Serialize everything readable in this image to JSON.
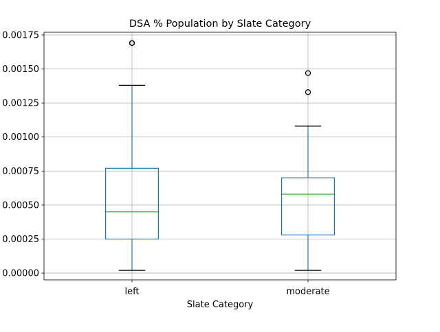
{
  "chart_data": {
    "type": "box",
    "title": "DSA % Population by Slate Category",
    "xlabel": "Slate Category",
    "ylabel": "",
    "categories": [
      "left",
      "moderate"
    ],
    "ylim": [
      -5e-05,
      0.00177
    ],
    "yticks": [
      0.0,
      0.00025,
      0.0005,
      0.00075,
      0.001,
      0.00125,
      0.0015,
      0.00175
    ],
    "ytick_labels": [
      "0.00000",
      "0.00025",
      "0.00050",
      "0.00075",
      "0.00100",
      "0.00125",
      "0.00150",
      "0.00175"
    ],
    "grid": true,
    "boxes": [
      {
        "category": "left",
        "whisker_low": 2e-05,
        "q1": 0.00025,
        "median": 0.00045,
        "q3": 0.00077,
        "whisker_high": 0.00138,
        "outliers": [
          0.00169,
          0.00169
        ]
      },
      {
        "category": "moderate",
        "whisker_low": 2e-05,
        "q1": 0.00028,
        "median": 0.00058,
        "q3": 0.0007,
        "whisker_high": 0.00108,
        "outliers": [
          0.00147,
          0.00133
        ]
      }
    ],
    "colors": {
      "box": "#1f77b4",
      "median": "#2ca02c",
      "whisker": "#1f77b4",
      "cap": "#000000",
      "outlier": "#000000",
      "grid": "#b0b0b0"
    }
  }
}
